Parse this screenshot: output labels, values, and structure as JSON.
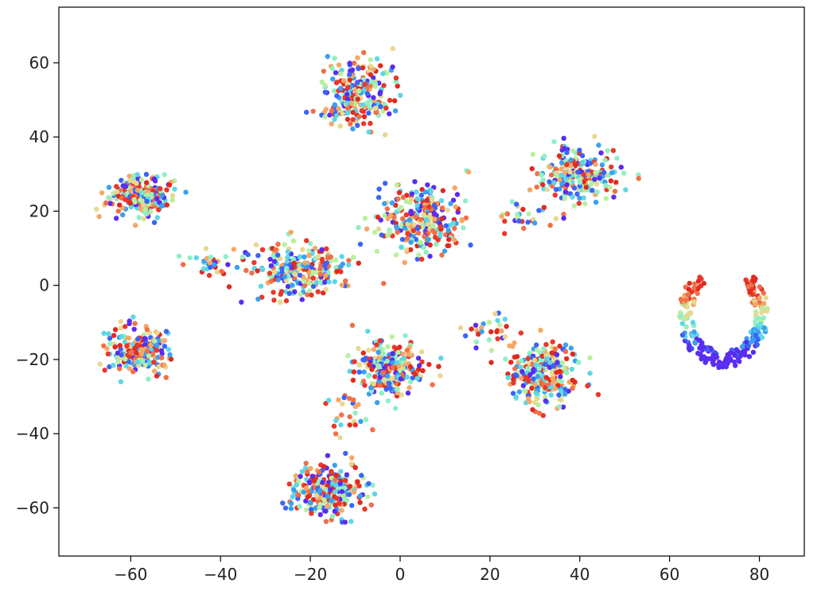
{
  "chart_data": {
    "type": "scatter",
    "title": "",
    "xlabel": "",
    "ylabel": "",
    "xlim": [
      -76,
      90
    ],
    "ylim": [
      -73,
      75
    ],
    "xticks": [
      -60,
      -40,
      -20,
      0,
      20,
      40,
      60,
      80
    ],
    "yticks": [
      -60,
      -40,
      -20,
      0,
      20,
      40,
      60
    ],
    "xtick_labels": [
      "−60",
      "−40",
      "−20",
      "0",
      "20",
      "40",
      "60",
      "80"
    ],
    "ytick_labels": [
      "−60",
      "−40",
      "−20",
      "0",
      "20",
      "40",
      "60"
    ],
    "grid": false,
    "legend": "none",
    "colormap": "rainbow",
    "palette": [
      "#5a2df0",
      "#3c64f6",
      "#3aa0f0",
      "#5ed6e6",
      "#8ef0c4",
      "#b8f0a0",
      "#e8d890",
      "#f4a866",
      "#f07048",
      "#e8382a",
      "#e02a20"
    ],
    "clusters": [
      {
        "center": [
          -10,
          52
        ],
        "spread": [
          7,
          9
        ],
        "count": 240,
        "color_bias": "mixed"
      },
      {
        "center": [
          -58,
          24
        ],
        "spread": [
          7,
          5
        ],
        "count": 220,
        "color_bias": "mixed"
      },
      {
        "center": [
          5,
          18
        ],
        "spread": [
          8,
          8
        ],
        "count": 300,
        "color_bias": "mixed"
      },
      {
        "center": [
          40,
          30
        ],
        "spread": [
          8,
          6
        ],
        "count": 240,
        "color_bias": "mixed"
      },
      {
        "center": [
          -22,
          4
        ],
        "spread": [
          10,
          7
        ],
        "count": 260,
        "color_bias": "mixed"
      },
      {
        "center": [
          72,
          -8
        ],
        "spread": [
          7,
          10
        ],
        "count": 230,
        "color_bias": "ring"
      },
      {
        "center": [
          -58,
          -18
        ],
        "spread": [
          6,
          6
        ],
        "count": 220,
        "color_bias": "mixed"
      },
      {
        "center": [
          -2,
          -22
        ],
        "spread": [
          7,
          7
        ],
        "count": 240,
        "color_bias": "mixed"
      },
      {
        "center": [
          32,
          -24
        ],
        "spread": [
          7,
          8
        ],
        "count": 260,
        "color_bias": "mixed"
      },
      {
        "center": [
          -16,
          -55
        ],
        "spread": [
          7,
          6
        ],
        "count": 270,
        "color_bias": "mixed"
      },
      {
        "center": [
          -42,
          6
        ],
        "spread": [
          6,
          3
        ],
        "count": 30,
        "color_bias": "mixed"
      },
      {
        "center": [
          28,
          18
        ],
        "spread": [
          6,
          3
        ],
        "count": 30,
        "color_bias": "mixed"
      },
      {
        "center": [
          20,
          -12
        ],
        "spread": [
          6,
          5
        ],
        "count": 30,
        "color_bias": "mixed"
      },
      {
        "center": [
          -12,
          -36
        ],
        "spread": [
          4,
          6
        ],
        "count": 25,
        "color_bias": "mixed"
      }
    ]
  }
}
